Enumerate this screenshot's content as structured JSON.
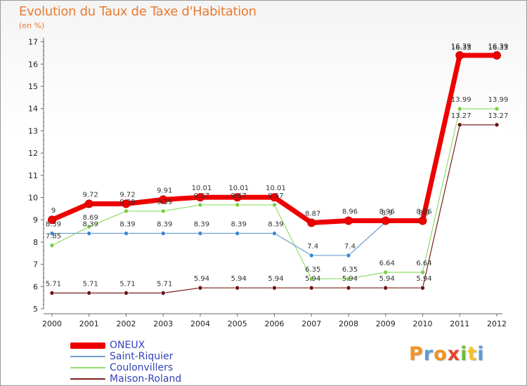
{
  "header": {
    "title": "Evolution du Taux de Taxe d'Habitation",
    "unit": "(en %)"
  },
  "logo": {
    "letters": [
      {
        "ch": "P",
        "color": "#f39321"
      },
      {
        "ch": "r",
        "color": "#5c9bd5"
      },
      {
        "ch": "o",
        "color": "#f39321"
      },
      {
        "ch": "x",
        "color": "#e8452c"
      },
      {
        "ch": "i",
        "color": "#6cbb3c"
      },
      {
        "ch": "t",
        "color": "#f3c12b"
      },
      {
        "ch": "i",
        "color": "#5c9bd5"
      }
    ]
  },
  "chart_data": {
    "type": "line",
    "title": "Evolution du Taux de Taxe d'Habitation",
    "ylabel": "(en %)",
    "xlabel": "",
    "ylim": [
      5,
      17
    ],
    "yticks": [
      5,
      6,
      7,
      8,
      9,
      10,
      11,
      12,
      13,
      14,
      15,
      16,
      17
    ],
    "categories": [
      "2000",
      "2001",
      "2002",
      "2003",
      "2004",
      "2005",
      "2006",
      "2007",
      "2008",
      "2009",
      "2010",
      "2011",
      "2012"
    ],
    "series": [
      {
        "name": "Maison-Roland",
        "color": "#7a1f1f",
        "point_color": "#6b1515",
        "width": 1.2,
        "values": [
          5.71,
          5.71,
          5.71,
          5.71,
          5.94,
          5.94,
          5.94,
          5.94,
          5.94,
          5.94,
          5.94,
          13.27,
          13.27
        ]
      },
      {
        "name": "Coulonvillers",
        "color": "#8fdc6b",
        "point_color": "#7ccd44",
        "width": 1.2,
        "values": [
          7.85,
          8.69,
          9.39,
          9.39,
          9.67,
          9.67,
          9.67,
          6.35,
          6.35,
          6.64,
          6.64,
          13.99,
          13.99
        ]
      },
      {
        "name": "Saint-Riquier",
        "color": "#6a9fd0",
        "point_color": "#3a87d6",
        "width": 1.2,
        "values": [
          8.39,
          8.39,
          8.39,
          8.39,
          8.39,
          8.39,
          8.39,
          7.4,
          7.4,
          8.9,
          8.9,
          16.33,
          16.33
        ]
      },
      {
        "name": "ONEUX",
        "color": "#ee0000",
        "point_color": "#ee0000",
        "width": 7,
        "values": [
          9,
          9.72,
          9.72,
          9.91,
          10.01,
          10.01,
          10.01,
          8.87,
          8.96,
          8.96,
          8.96,
          16.39,
          16.39
        ]
      }
    ],
    "data_labels": [
      [
        "5.71",
        "5.71",
        "5.71",
        "5.71",
        "5.94",
        "5.94",
        "5.94",
        "5.94",
        "5.94",
        "5.94",
        "5.94",
        "13.27",
        "13.27"
      ],
      [
        "7.85",
        "8.69",
        "9.39",
        "9.39",
        "9.67",
        "9.67",
        "9.67",
        "6.35",
        "6.35",
        "6.64",
        "6.64",
        "13.99",
        "13.99"
      ],
      [
        "8.39",
        "8.39",
        "8.39",
        "8.39",
        "8.39",
        "8.39",
        "8.39",
        "7.4",
        "7.4",
        "8.9",
        "8.9",
        "16.33",
        "16.33"
      ],
      [
        "9",
        "9.72",
        "9.72",
        "9.91",
        "10.01",
        "10.01",
        "10.01",
        "8.87",
        "8.96",
        "8.96",
        "8.96",
        "16.39",
        "16.39"
      ]
    ],
    "legend": {
      "placement": "bottom-left",
      "entries": [
        "ONEUX",
        "Saint-Riquier",
        "Coulonvillers",
        "Maison-Roland"
      ]
    }
  }
}
